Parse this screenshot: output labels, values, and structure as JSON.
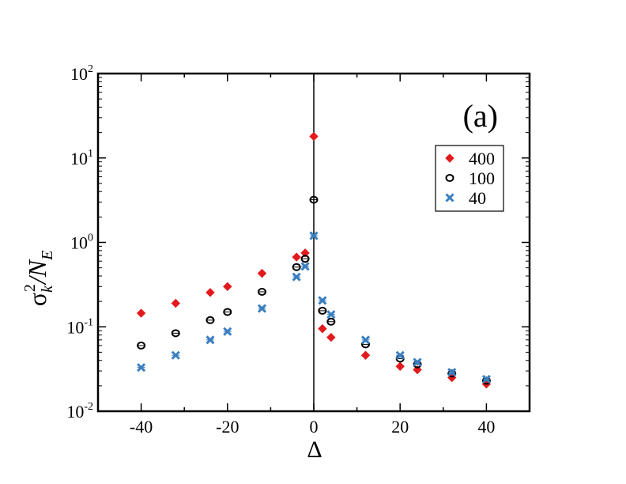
{
  "chart_data": {
    "type": "scatter",
    "panel_label": "(a)",
    "xlabel": "Δ",
    "ylabel": {
      "base": "σ",
      "sub1": "k",
      "sup": "2",
      "slash": "/N",
      "sub2": "E"
    },
    "x_scale": "linear",
    "y_scale": "log",
    "xlim": [
      -50,
      50
    ],
    "ylim": [
      0.01,
      100
    ],
    "x_ticks": [
      -40,
      -20,
      0,
      20,
      40
    ],
    "x_tick_labels": [
      "-40",
      "-20",
      "0",
      "20",
      "40"
    ],
    "y_ticks": [
      {
        "value": 0.01,
        "base": "10",
        "exp": "-2"
      },
      {
        "value": 0.1,
        "base": "10",
        "exp": "-1"
      },
      {
        "value": 1,
        "base": "10",
        "exp": "0"
      },
      {
        "value": 10,
        "base": "10",
        "exp": "1"
      },
      {
        "value": 100,
        "base": "10",
        "exp": "2"
      }
    ],
    "vertical_line_x": 0,
    "legend_position": "top-right",
    "series": [
      {
        "name": "400",
        "marker": "diamond",
        "color": "#e31a1c",
        "x": [
          -40,
          -32,
          -24,
          -20,
          -12,
          -4,
          -2,
          0,
          2,
          4,
          12,
          20,
          24,
          32,
          40
        ],
        "y": [
          0.145,
          0.19,
          0.255,
          0.3,
          0.43,
          0.67,
          0.75,
          18,
          0.095,
          0.075,
          0.046,
          0.034,
          0.031,
          0.025,
          0.021
        ]
      },
      {
        "name": "100",
        "marker": "circle",
        "color": "#000000",
        "x": [
          -40,
          -32,
          -24,
          -20,
          -12,
          -4,
          -2,
          0,
          2,
          4,
          12,
          20,
          24,
          32,
          40
        ],
        "y": [
          0.06,
          0.084,
          0.12,
          0.15,
          0.26,
          0.51,
          0.64,
          3.2,
          0.155,
          0.115,
          0.062,
          0.042,
          0.036,
          0.028,
          0.023
        ]
      },
      {
        "name": "40",
        "marker": "x",
        "color": "#3a7fbf",
        "x": [
          -40,
          -32,
          -24,
          -20,
          -12,
          -4,
          -2,
          0,
          2,
          4,
          12,
          20,
          24,
          32,
          40
        ],
        "y": [
          0.033,
          0.046,
          0.07,
          0.088,
          0.165,
          0.39,
          0.52,
          1.2,
          0.205,
          0.14,
          0.07,
          0.046,
          0.038,
          0.029,
          0.024
        ]
      }
    ]
  }
}
